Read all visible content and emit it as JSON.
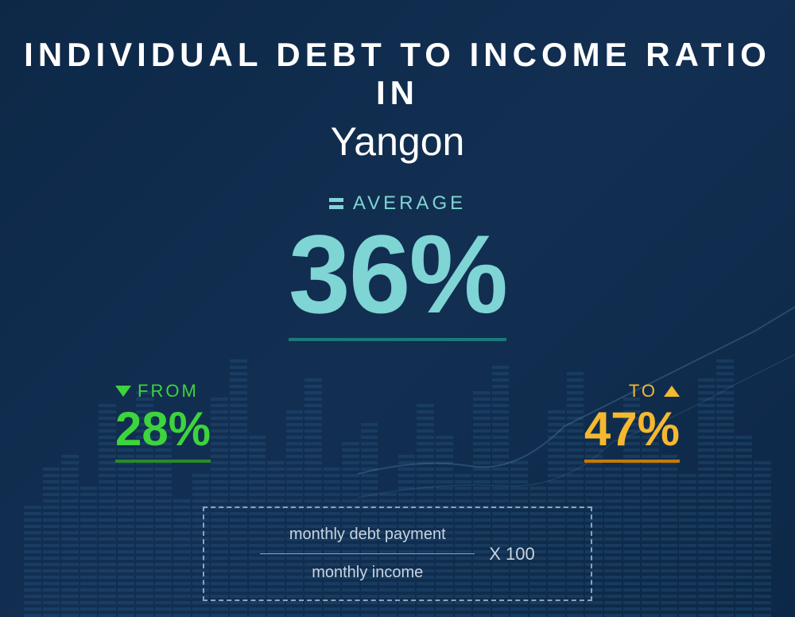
{
  "title": {
    "line1": "INDIVIDUAL  DEBT  TO  INCOME RATIO  IN",
    "line2": "Yangon"
  },
  "average": {
    "label": "AVERAGE",
    "value": "36%",
    "color": "#7fd4d4",
    "underline_color": "#1a7a7a"
  },
  "range": {
    "from": {
      "label": "FROM",
      "value": "28%",
      "color": "#3dd43d",
      "underline_color": "#2a8a2a"
    },
    "to": {
      "label": "TO",
      "value": "47%",
      "color": "#f5b82e",
      "underline_color": "#c47a0a"
    }
  },
  "formula": {
    "numerator": "monthly debt payment",
    "denominator": "monthly income",
    "multiplier": "X 100"
  },
  "background": {
    "gradient_start": "#0d2847",
    "gradient_end": "#122f52",
    "bar_heights_pct": [
      35,
      48,
      52,
      42,
      68,
      55,
      72,
      60,
      38,
      45,
      70,
      82,
      58,
      50,
      65,
      75,
      48,
      55,
      62,
      40,
      52,
      68,
      58,
      45,
      72,
      80,
      50,
      42,
      65,
      78,
      55,
      48,
      70,
      60,
      52,
      45,
      75,
      82,
      58,
      50
    ]
  }
}
